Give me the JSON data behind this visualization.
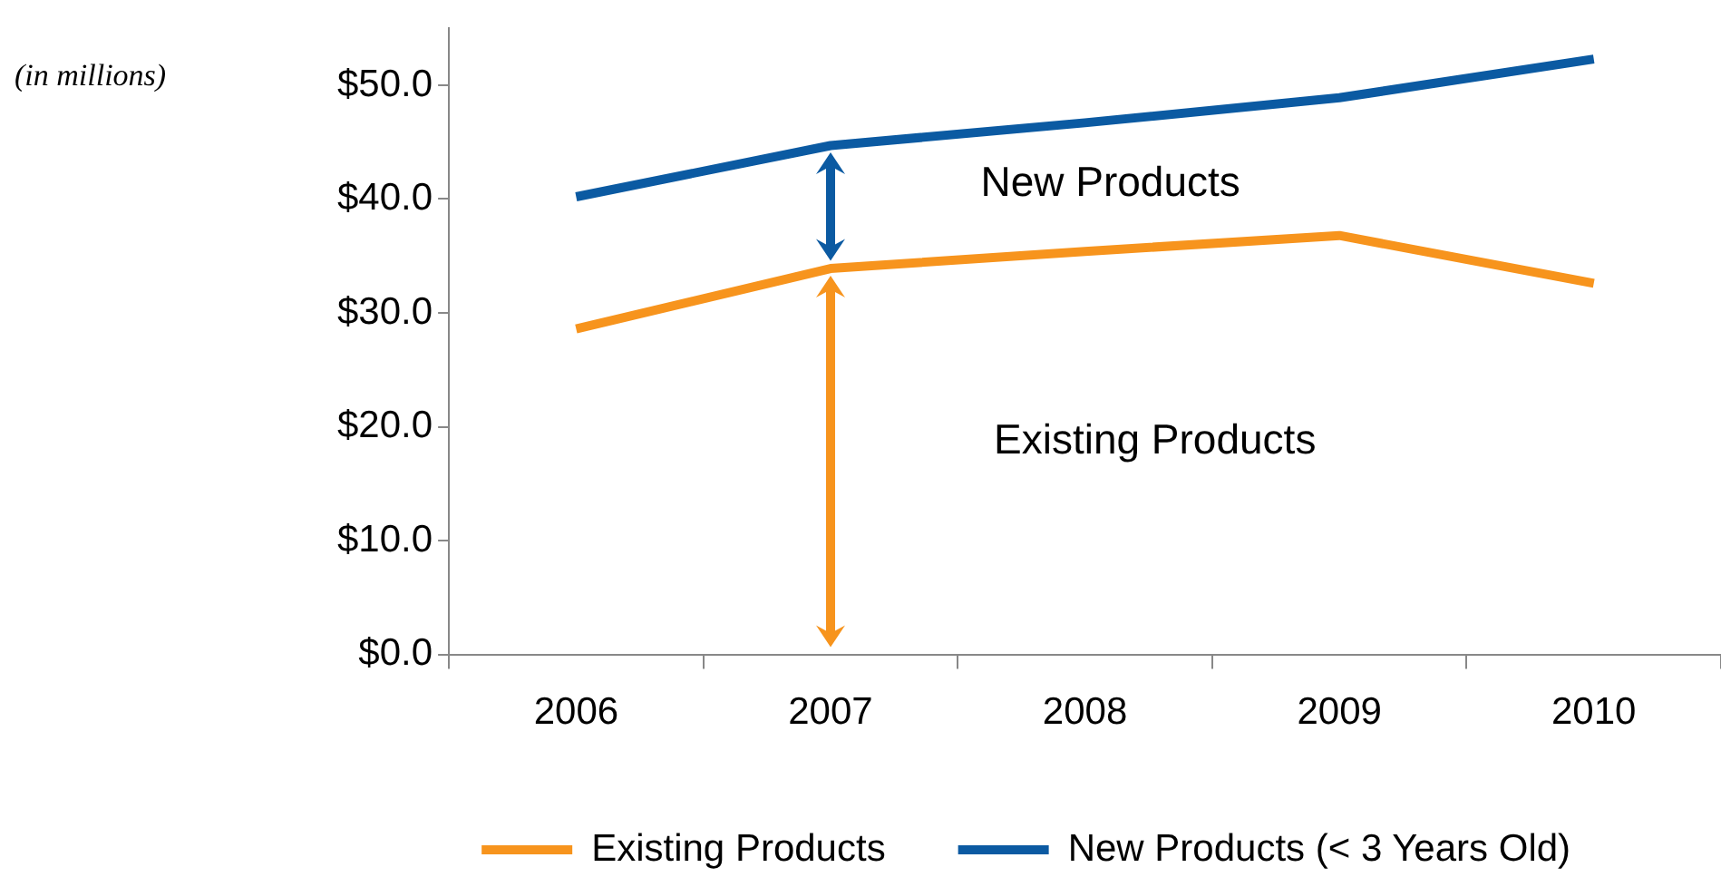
{
  "chart_data": {
    "type": "line",
    "categories": [
      "2006",
      "2007",
      "2008",
      "2009",
      "2010"
    ],
    "series": [
      {
        "name": "Existing Products",
        "color": "#f7941d",
        "values": [
          28.6,
          33.9,
          35.4,
          36.8,
          32.6
        ]
      },
      {
        "name": "New Products (< 3 Years Old)",
        "color": "#0b5aa2",
        "values": [
          40.2,
          44.7,
          46.7,
          48.9,
          52.3
        ]
      }
    ],
    "ylim": [
      0,
      55
    ],
    "yticks": [
      {
        "value": 0,
        "label": "$0.0"
      },
      {
        "value": 10,
        "label": "$10.0"
      },
      {
        "value": 20,
        "label": "$20.0"
      },
      {
        "value": 30,
        "label": "$30.0"
      },
      {
        "value": 40,
        "label": "$40.0"
      },
      {
        "value": 50,
        "label": "$50.0"
      }
    ],
    "annotations": [
      "(in millions)",
      "New Products",
      "Existing Products"
    ],
    "grid": false,
    "legend": "bottom",
    "marker": "none",
    "line_style": "solid"
  }
}
